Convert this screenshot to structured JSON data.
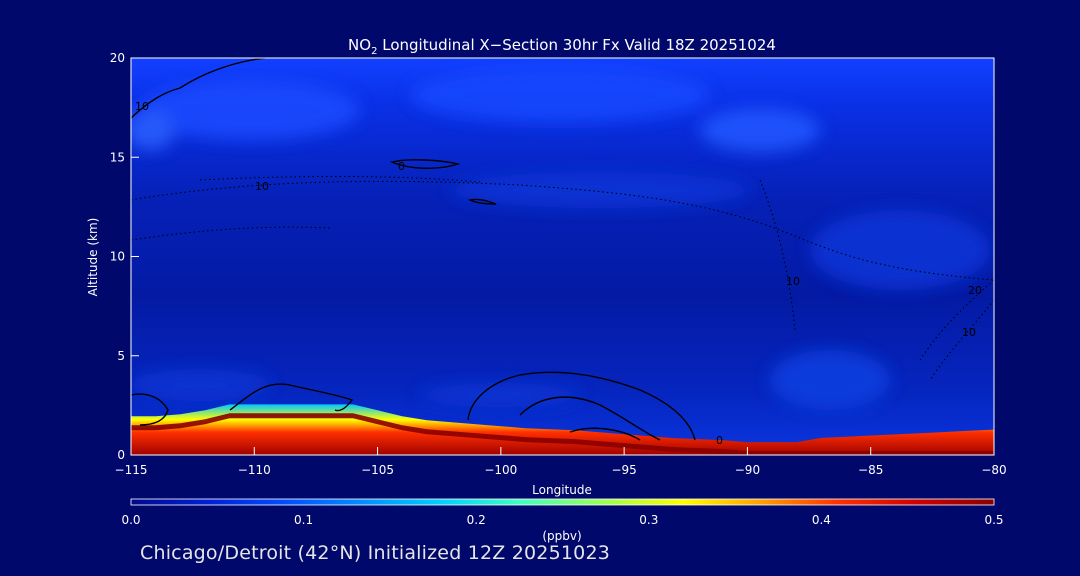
{
  "chart_data": {
    "type": "heatmap",
    "title_main": "NO",
    "title_sub": "2",
    "title_rest": " Longitudinal X−Section 30hr  Fx Valid 18Z 20251024",
    "xlabel": "Longitude",
    "ylabel": "Altitude (km)",
    "xlim": [
      -115,
      -80
    ],
    "ylim": [
      0,
      20
    ],
    "x_ticks": [
      -115,
      -110,
      -105,
      -100,
      -95,
      -90,
      -85,
      -80
    ],
    "x_tick_labels": [
      "−115",
      "−110",
      "−105",
      "−100",
      "−95",
      "−90",
      "−85",
      "−80"
    ],
    "y_ticks": [
      0,
      5,
      10,
      15,
      20
    ],
    "y_tick_labels": [
      "0",
      "5",
      "10",
      "15",
      "20"
    ],
    "colorbar": {
      "label": "(ppbv)",
      "range": [
        0.0,
        0.5
      ],
      "ticks": [
        0.0,
        0.1,
        0.2,
        0.3,
        0.4,
        0.5
      ],
      "tick_labels": [
        "0.0",
        "0.1",
        "0.2",
        "0.3",
        "0.4",
        "0.5"
      ],
      "colors": [
        "#000a8c",
        "#0020d8",
        "#0050ff",
        "#0090ff",
        "#00d0ff",
        "#40ffc0",
        "#a0ff50",
        "#ffff00",
        "#ffa000",
        "#ff3000",
        "#d00000",
        "#8a0000"
      ]
    },
    "terrain": {
      "lon": [
        -115,
        -114,
        -113,
        -112,
        -111,
        -110,
        -109,
        -108,
        -107,
        -106,
        -105,
        -104,
        -103,
        -102,
        -101,
        -100,
        -99,
        -98,
        -97,
        -96,
        -95,
        -94,
        -93,
        -92,
        -91,
        -90,
        -89,
        -88,
        -87,
        -86,
        -85,
        -84,
        -83,
        -82,
        -81,
        -80
      ],
      "alt_km": [
        1.5,
        1.5,
        1.6,
        1.8,
        2.1,
        2.1,
        2.1,
        2.1,
        2.1,
        2.1,
        1.8,
        1.5,
        1.3,
        1.2,
        1.1,
        1.0,
        0.9,
        0.85,
        0.8,
        0.7,
        0.6,
        0.5,
        0.4,
        0.35,
        0.3,
        0.2,
        0.2,
        0.2,
        0.2,
        0.2,
        0.2,
        0.2,
        0.2,
        0.2,
        0.2,
        0.2
      ]
    },
    "contour_labels": [
      "10",
      "10",
      "0",
      "10",
      "0",
      "20",
      "10"
    ],
    "footer": "Chicago/Detroit (42°N) Initialized 12Z 20251023"
  }
}
